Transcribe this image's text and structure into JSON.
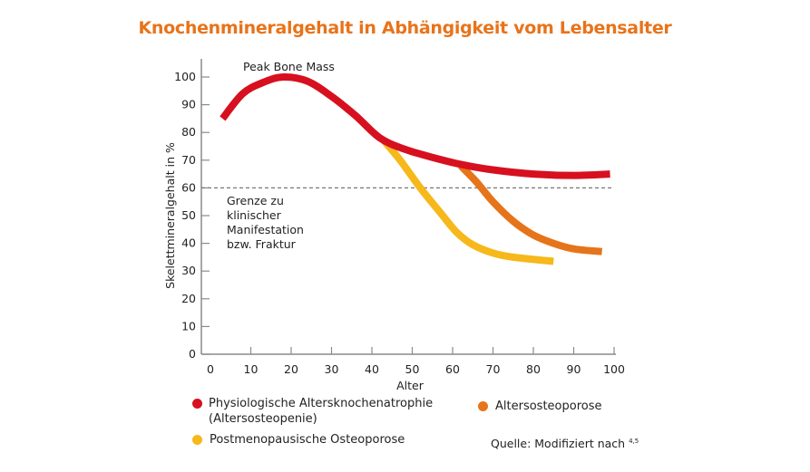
{
  "chart_data": {
    "type": "line",
    "title": "Knochenmineralgehalt in Abhängigkeit vom Lebensalter",
    "xlabel": "Alter",
    "ylabel": "Skelettmineralgehalt in %",
    "xlim": [
      0,
      100
    ],
    "ylim": [
      0,
      100
    ],
    "xticks": [
      0,
      10,
      20,
      30,
      40,
      50,
      60,
      70,
      80,
      90,
      100
    ],
    "yticks": [
      0,
      10,
      20,
      30,
      40,
      50,
      60,
      70,
      80,
      90,
      100
    ],
    "grid": false,
    "legend_placement": "bottom",
    "threshold": {
      "y": 60,
      "label": [
        "Grenze zu",
        "klinischer",
        "Manifestation",
        "bzw. Fraktur"
      ]
    },
    "annotation": "Peak Bone Mass",
    "source": "Quelle: Modifiziert nach",
    "source_sup": "4,5",
    "colors": {
      "title": "#e8731a",
      "axis": "#8a8a8a",
      "threshold": "#777777"
    },
    "series": [
      {
        "name": "Physiologische Altersknochenatrophie",
        "name_line2": "(Altersosteopenie)",
        "color": "#d7101f",
        "x": [
          3,
          8,
          13,
          18,
          24,
          30,
          36,
          42,
          48,
          55,
          62,
          70,
          80,
          90,
          99
        ],
        "y": [
          85,
          94,
          98,
          100,
          98.5,
          93,
          86,
          78,
          74,
          71,
          68.5,
          66.5,
          65,
          64.5,
          65
        ]
      },
      {
        "name": "Postmenopausische Osteoporose",
        "color": "#f6b81a",
        "x": [
          43,
          47,
          52,
          57,
          61,
          65,
          70,
          75,
          85
        ],
        "y": [
          77,
          70,
          60,
          51,
          44,
          39.5,
          36.5,
          35,
          33.5
        ]
      },
      {
        "name": "Altersosteoporose",
        "color": "#e6741a",
        "x": [
          62,
          66,
          70,
          75,
          80,
          85,
          90,
          97
        ],
        "y": [
          68,
          62,
          55,
          48,
          43,
          40,
          38,
          37
        ]
      }
    ]
  }
}
